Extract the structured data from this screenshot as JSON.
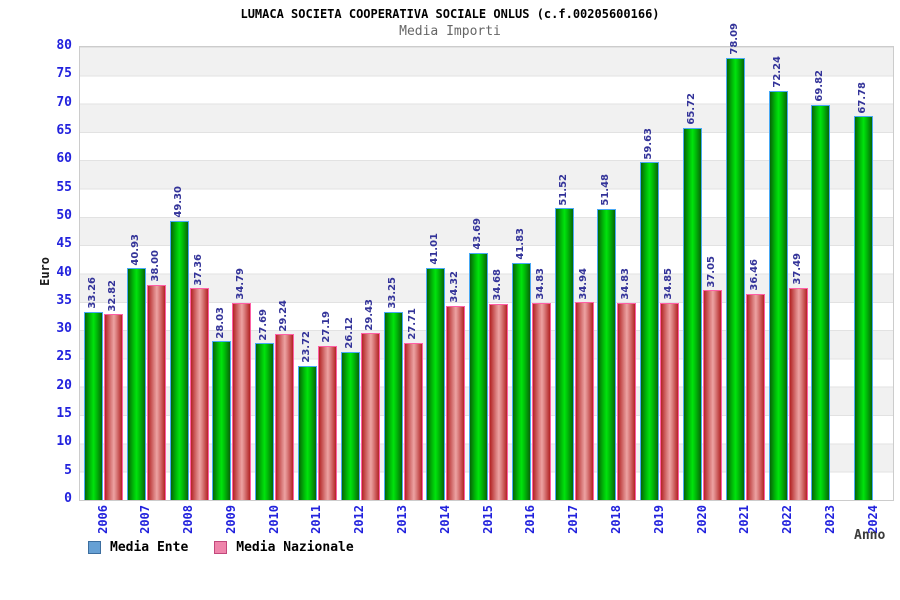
{
  "header": {
    "title": "LUMACA SOCIETA COOPERATIVA SOCIALE ONLUS (c.f.00205600166)",
    "subtitle": "Media Importi"
  },
  "axes": {
    "y_title": "Euro",
    "x_title": "Anno",
    "y_min": 0,
    "y_max": 80,
    "y_tick_step": 5
  },
  "legend": {
    "items": [
      {
        "label": "Media Ente",
        "swatch_fill": "#66a0d4",
        "swatch_border": "#3c6e9f"
      },
      {
        "label": "Media Nazionale",
        "swatch_fill": "#ef85ab",
        "swatch_border": "#c2487c"
      }
    ]
  },
  "chart_data": {
    "type": "bar",
    "title": "LUMACA SOCIETA COOPERATIVA SOCIALE ONLUS (c.f.00205600166)",
    "subtitle": "Media Importi",
    "xlabel": "Anno",
    "ylabel": "Euro",
    "ylim": [
      0,
      80
    ],
    "grid": "horizontal-bands-every-5",
    "legend_position": "bottom-left",
    "value_labels": "rotated-90-above-bars, two decimals",
    "categories": [
      "2006",
      "2007",
      "2008",
      "2009",
      "2010",
      "2011",
      "2012",
      "2013",
      "2014",
      "2015",
      "2016",
      "2017",
      "2018",
      "2019",
      "2020",
      "2021",
      "2022",
      "2023",
      "2024"
    ],
    "series": [
      {
        "name": "Media Ente",
        "bar_style": "green-cylinder-gradient",
        "values": [
          33.26,
          40.93,
          49.3,
          28.03,
          27.69,
          23.72,
          26.12,
          33.25,
          41.01,
          43.69,
          41.83,
          51.52,
          51.48,
          59.63,
          65.72,
          78.09,
          72.24,
          69.82,
          67.78
        ]
      },
      {
        "name": "Media Nazionale",
        "bar_style": "red-cylinder-gradient",
        "values": [
          32.82,
          38.0,
          37.36,
          34.79,
          29.24,
          27.19,
          29.43,
          27.71,
          34.32,
          34.68,
          34.83,
          34.94,
          34.83,
          34.85,
          37.05,
          36.46,
          37.49,
          null,
          null
        ]
      }
    ]
  },
  "colors": {
    "axis_text": "#2222dd",
    "value_label": "#333399",
    "subtitle": "#666666",
    "band": "#f1f1f1",
    "grid_line": "#e2e2e2",
    "plot_border": "#cccccc",
    "green_edge": "#076607",
    "green_mid": "#00e40c",
    "green_border": "#49a9f5",
    "red_edge": "#b32424",
    "red_mid": "#eda2a2",
    "red_border": "#ff5fa6"
  }
}
